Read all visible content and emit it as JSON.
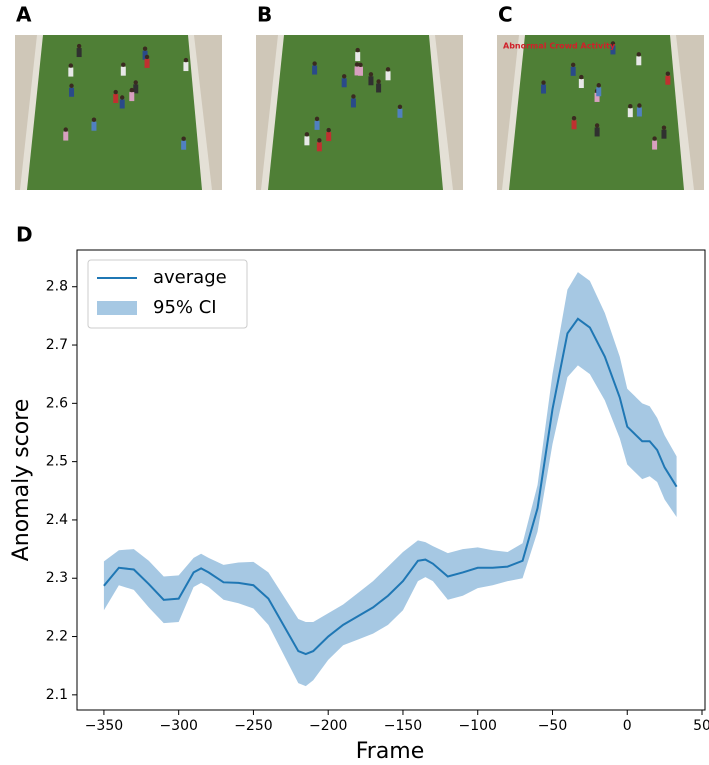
{
  "panels": [
    {
      "label": "A"
    },
    {
      "label": "B"
    },
    {
      "label": "C",
      "overlay": "Abnormal Crowd Activity"
    }
  ],
  "chart_label": "D",
  "chart_data": {
    "type": "line",
    "xlabel": "Frame",
    "ylabel": "Anomaly score",
    "x": [
      -350,
      -340,
      -330,
      -320,
      -310,
      -300,
      -290,
      -285,
      -280,
      -270,
      -260,
      -250,
      -240,
      -230,
      -220,
      -215,
      -210,
      -200,
      -190,
      -180,
      -170,
      -160,
      -150,
      -140,
      -135,
      -130,
      -120,
      -110,
      -100,
      -90,
      -80,
      -70,
      -60,
      -50,
      -40,
      -33,
      -25,
      -15,
      -5,
      0,
      10,
      15,
      20,
      25,
      33
    ],
    "series": [
      {
        "name": "average",
        "color": "#1f77b4",
        "values": [
          2.287,
          2.318,
          2.315,
          2.29,
          2.263,
          2.265,
          2.31,
          2.317,
          2.31,
          2.293,
          2.292,
          2.288,
          2.265,
          2.22,
          2.175,
          2.17,
          2.175,
          2.2,
          2.22,
          2.235,
          2.25,
          2.27,
          2.295,
          2.33,
          2.332,
          2.325,
          2.303,
          2.31,
          2.318,
          2.318,
          2.32,
          2.33,
          2.42,
          2.59,
          2.72,
          2.745,
          2.73,
          2.68,
          2.61,
          2.56,
          2.535,
          2.535,
          2.52,
          2.49,
          2.457
        ]
      },
      {
        "name": "95% CI",
        "color": "#a6c8e3",
        "lower": [
          2.245,
          2.288,
          2.28,
          2.25,
          2.223,
          2.225,
          2.285,
          2.292,
          2.285,
          2.263,
          2.257,
          2.248,
          2.22,
          2.17,
          2.12,
          2.115,
          2.125,
          2.16,
          2.185,
          2.195,
          2.205,
          2.22,
          2.245,
          2.295,
          2.302,
          2.295,
          2.263,
          2.27,
          2.283,
          2.288,
          2.295,
          2.3,
          2.38,
          2.53,
          2.645,
          2.665,
          2.65,
          2.605,
          2.54,
          2.495,
          2.47,
          2.475,
          2.465,
          2.435,
          2.405
        ],
        "upper": [
          2.329,
          2.348,
          2.35,
          2.33,
          2.303,
          2.305,
          2.335,
          2.342,
          2.335,
          2.323,
          2.327,
          2.328,
          2.31,
          2.27,
          2.23,
          2.225,
          2.225,
          2.24,
          2.255,
          2.275,
          2.295,
          2.32,
          2.345,
          2.365,
          2.362,
          2.355,
          2.343,
          2.35,
          2.353,
          2.348,
          2.345,
          2.36,
          2.46,
          2.65,
          2.795,
          2.825,
          2.81,
          2.755,
          2.68,
          2.625,
          2.6,
          2.595,
          2.575,
          2.545,
          2.509
        ]
      }
    ],
    "xlim": [
      -368,
      52
    ],
    "ylim": [
      2.074,
      2.863
    ],
    "xticks": [
      {
        "value": -350,
        "label": "−350"
      },
      {
        "value": -300,
        "label": "−300"
      },
      {
        "value": -250,
        "label": "−250"
      },
      {
        "value": -200,
        "label": "−200"
      },
      {
        "value": -150,
        "label": "−150"
      },
      {
        "value": -100,
        "label": "−100"
      },
      {
        "value": -50,
        "label": "−50"
      },
      0,
      50
    ],
    "yticks": [
      2.1,
      2.2,
      2.3,
      2.4,
      2.5,
      2.6,
      2.7,
      2.8
    ],
    "legend": "upper left",
    "grid": false
  }
}
